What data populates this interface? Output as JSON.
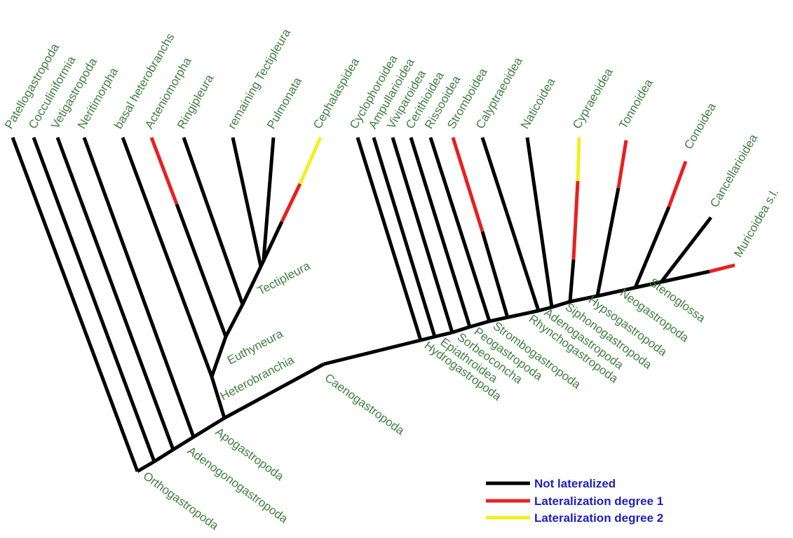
{
  "colors": {
    "not_lateralized": "#000000",
    "lateralization_degree_1": "#e8201f",
    "lateralization_degree_2": "#f0f020",
    "taxon_text": "#3f7f3f",
    "legend_text": "#1f1fbf"
  },
  "taxa": [
    {
      "label": "Patellogastropoda",
      "state": "not_lateralized"
    },
    {
      "label": "Cocculiniformia",
      "state": "not_lateralized"
    },
    {
      "label": "Vetigastropoda",
      "state": "not_lateralized"
    },
    {
      "label": "Neritimorpha",
      "state": "not_lateralized"
    },
    {
      "label": "basal heterobranchs",
      "state": "not_lateralized"
    },
    {
      "label": "Acteniomorpha",
      "state": "lateralization_degree_1"
    },
    {
      "label": "Ringipleura",
      "state": "not_lateralized"
    },
    {
      "label": "remaining Tectipleura",
      "state": "not_lateralized"
    },
    {
      "label": "Pulmonata",
      "state": "not_lateralized"
    },
    {
      "label": "Cephalaspidea",
      "state": "lateralization_degree_2"
    },
    {
      "label": "Cyclophoroidea",
      "state": "not_lateralized"
    },
    {
      "label": "Ampullarioidea",
      "state": "not_lateralized"
    },
    {
      "label": "Viviparoidea",
      "state": "not_lateralized"
    },
    {
      "label": "Cerithioidea",
      "state": "not_lateralized"
    },
    {
      "label": "Rissooidea",
      "state": "not_lateralized"
    },
    {
      "label": "Stromboidea",
      "state": "lateralization_degree_1"
    },
    {
      "label": "Calyptraeoidea",
      "state": "not_lateralized"
    },
    {
      "label": "Naticoidea",
      "state": "not_lateralized"
    },
    {
      "label": "Cypraeoidea",
      "state": "lateralization_degree_2"
    },
    {
      "label": "Tonnoidea",
      "state": "lateralization_degree_1"
    },
    {
      "label": "Conoidea",
      "state": "lateralization_degree_1"
    },
    {
      "label": "Cancellarioidea",
      "state": "not_lateralized"
    },
    {
      "label": "Muricoidea s.l.",
      "state": "lateralization_degree_1"
    }
  ],
  "clades": [
    "Orthogastropoda",
    "Adenogonogastropoda",
    "Apogastropoda",
    "Heterobranchia",
    "Euthyneura",
    "Tectipleura",
    "Caenogastropoda",
    "Hydrogastropoda",
    "Epiathroidea",
    "Sorbeoconcha",
    "Peogastropoda",
    "Strombogastropoda",
    "Rhynchogastropoda",
    "Adenogastropoda",
    "Siphonogastropoda",
    "Hypsogastropoda",
    "Neogastropoda",
    "Stenoglossa"
  ],
  "legend": {
    "items": [
      {
        "label": "Not lateralized",
        "state": "not_lateralized"
      },
      {
        "label": "Lateralization degree 1",
        "state": "lateralization_degree_1"
      },
      {
        "label": "Lateralization degree 2",
        "state": "lateralization_degree_2"
      }
    ]
  }
}
